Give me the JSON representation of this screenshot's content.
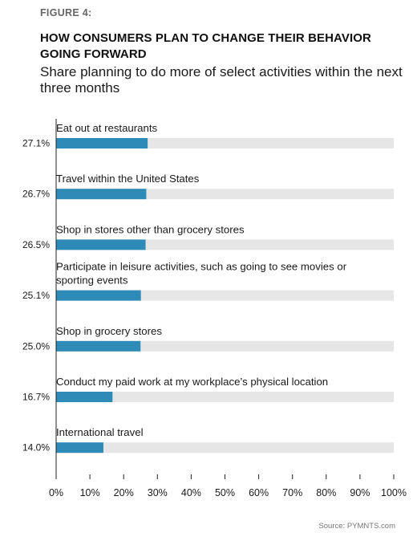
{
  "figure_label": "FIGURE 4:",
  "title": "HOW CONSUMERS PLAN TO CHANGE THEIR BEHAVIOR GOING FORWARD",
  "subtitle": "Share planning to do more of select activities within the next three months",
  "source": "Source: PYMNTS.com",
  "colors": {
    "bar": "#2e8bb8",
    "track": "#e6e6e6",
    "axis": "#222222",
    "text": "#1a1a1a"
  },
  "chart_data": {
    "type": "bar",
    "orientation": "horizontal",
    "categories": [
      "Eat out at restaurants",
      "Travel within the United States",
      "Shop in stores other than grocery stores",
      "Participate in leisure activities, such as going to see movies or sporting events",
      "Shop in grocery stores",
      "Conduct my paid work at my workplace’s physical location",
      "International travel"
    ],
    "values": [
      27.1,
      26.7,
      26.5,
      25.1,
      25.0,
      16.7,
      14.0
    ],
    "value_labels": [
      "27.1%",
      "26.7%",
      "26.5%",
      "25.1%",
      "25.0%",
      "16.7%",
      "14.0%"
    ],
    "xlim": [
      0,
      100
    ],
    "xticks": [
      "0%",
      "10%",
      "20%",
      "30%",
      "40%",
      "50%",
      "60%",
      "70%",
      "80%",
      "90%",
      "100%"
    ],
    "grid": false,
    "legend": "none"
  }
}
